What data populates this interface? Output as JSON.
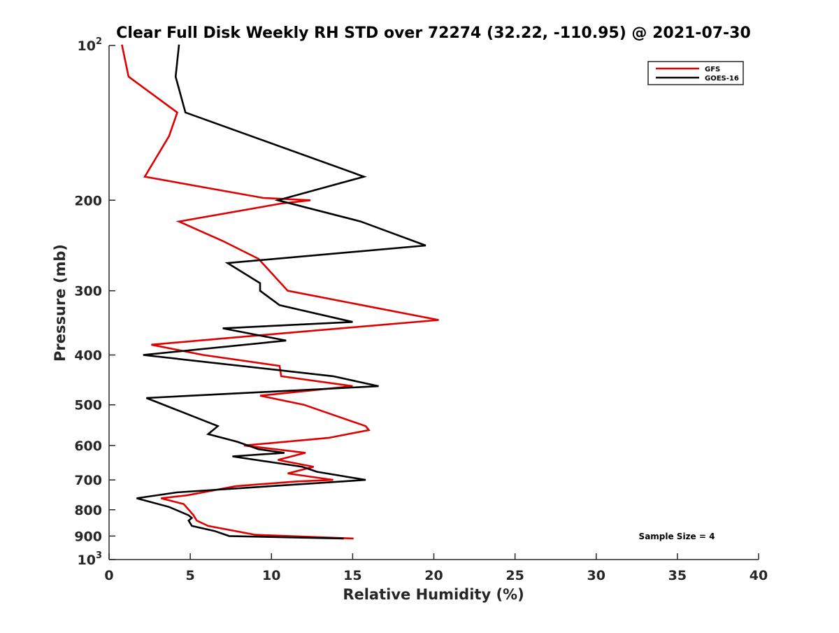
{
  "chart_data": {
    "type": "line",
    "title": "Clear Full Disk Weekly RH STD over 72274 (32.22, -110.95) @ 2021-07-30",
    "xlabel": "Relative Humidity (%)",
    "ylabel": "Pressure (mb)",
    "xlim": [
      0,
      40
    ],
    "ylim": [
      100,
      1000
    ],
    "y_scale": "log",
    "y_reversed": true,
    "grid": false,
    "legend_position": "top-right",
    "x_ticks": [
      0,
      5,
      10,
      15,
      20,
      25,
      30,
      35,
      40
    ],
    "x_tick_labels": [
      "0",
      "5",
      "10",
      "15",
      "20",
      "25",
      "30",
      "35",
      "40"
    ],
    "y_ticks": [
      {
        "value": 100,
        "base": "10",
        "exp": "2"
      },
      {
        "value": 200,
        "label": "200"
      },
      {
        "value": 300,
        "label": "300"
      },
      {
        "value": 400,
        "label": "400"
      },
      {
        "value": 500,
        "label": "500"
      },
      {
        "value": 600,
        "label": "600"
      },
      {
        "value": 700,
        "label": "700"
      },
      {
        "value": 800,
        "label": "800"
      },
      {
        "value": 900,
        "label": "900"
      },
      {
        "value": 1000,
        "base": "10",
        "exp": "3"
      }
    ],
    "annotation": "Sample Size = 4",
    "series": [
      {
        "name": "GFS",
        "color": "#e00000",
        "points": [
          [
            0.8,
            100
          ],
          [
            1.2,
            115
          ],
          [
            4.2,
            135
          ],
          [
            3.7,
            150
          ],
          [
            2.2,
            180
          ],
          [
            9.5,
            198
          ],
          [
            12.4,
            200
          ],
          [
            10.6,
            203
          ],
          [
            4.3,
            220
          ],
          [
            7.0,
            240
          ],
          [
            9.2,
            260
          ],
          [
            11.0,
            300
          ],
          [
            20.3,
            342
          ],
          [
            12.0,
            360
          ],
          [
            2.6,
            382
          ],
          [
            5.8,
            400
          ],
          [
            10.5,
            420
          ],
          [
            10.6,
            440
          ],
          [
            15.0,
            460
          ],
          [
            9.3,
            480
          ],
          [
            12.0,
            500
          ],
          [
            15.8,
            550
          ],
          [
            16.0,
            560
          ],
          [
            13.5,
            580
          ],
          [
            8.3,
            600
          ],
          [
            12.1,
            620
          ],
          [
            10.4,
            640
          ],
          [
            12.6,
            660
          ],
          [
            11.0,
            680
          ],
          [
            13.8,
            700
          ],
          [
            11.5,
            705
          ],
          [
            7.8,
            720
          ],
          [
            4.8,
            750
          ],
          [
            3.2,
            760
          ],
          [
            4.6,
            780
          ],
          [
            5.2,
            820
          ],
          [
            5.4,
            840
          ],
          [
            6.1,
            860
          ],
          [
            9.0,
            895
          ],
          [
            15.0,
            910
          ]
        ]
      },
      {
        "name": "GOES-16",
        "color": "#000000",
        "points": [
          [
            4.3,
            100
          ],
          [
            4.1,
            115
          ],
          [
            4.7,
            135
          ],
          [
            15.7,
            180
          ],
          [
            10.4,
            200
          ],
          [
            15.5,
            220
          ],
          [
            19.5,
            245
          ],
          [
            7.3,
            265
          ],
          [
            9.3,
            290
          ],
          [
            9.3,
            300
          ],
          [
            10.5,
            320
          ],
          [
            15.0,
            345
          ],
          [
            7.0,
            355
          ],
          [
            10.9,
            375
          ],
          [
            2.1,
            400
          ],
          [
            13.8,
            440
          ],
          [
            16.6,
            460
          ],
          [
            2.3,
            485
          ],
          [
            5.4,
            530
          ],
          [
            6.7,
            550
          ],
          [
            6.1,
            570
          ],
          [
            7.9,
            590
          ],
          [
            9.2,
            610
          ],
          [
            10.8,
            620
          ],
          [
            7.6,
            630
          ],
          [
            11.9,
            660
          ],
          [
            12.8,
            675
          ],
          [
            15.8,
            700
          ],
          [
            4.2,
            740
          ],
          [
            1.7,
            760
          ],
          [
            3.7,
            790
          ],
          [
            4.9,
            820
          ],
          [
            5.1,
            830
          ],
          [
            4.9,
            840
          ],
          [
            5.1,
            860
          ],
          [
            6.5,
            880
          ],
          [
            7.4,
            900
          ],
          [
            14.4,
            910
          ]
        ]
      }
    ]
  }
}
